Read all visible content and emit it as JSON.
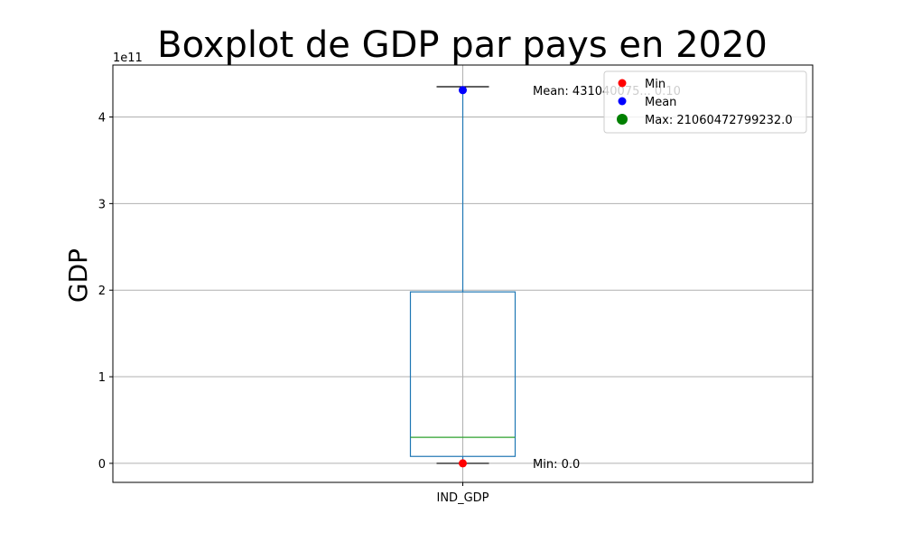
{
  "chart_data": {
    "type": "box",
    "title": "Boxplot de GDP par pays en 2020",
    "ylabel": "GDP",
    "offset_label": "1e11",
    "categories": [
      "IND_GDP"
    ],
    "ylim": [
      -22000000000.0,
      460000000000.0
    ],
    "yticks": [
      0,
      100000000000.0,
      200000000000.0,
      300000000000.0,
      400000000000.0
    ],
    "ytick_labels": [
      "0",
      "1",
      "2",
      "3",
      "4"
    ],
    "grid": true,
    "legend_placement": "upper right",
    "box": {
      "whisker_low": 0,
      "q1": 8000000000.0,
      "median": 30000000000.0,
      "q3": 198000000000.0,
      "whisker_high": 435000000000.0
    },
    "points": {
      "min": {
        "x": "IND_GDP",
        "y": 0,
        "label": "Min: 0.0",
        "color": "#ff0000"
      },
      "mean": {
        "x": "IND_GDP",
        "y": 431000000000.0,
        "label": "Mean: 431040075... 0.10",
        "color": "#0000ff"
      }
    },
    "legend": [
      {
        "label": "Min",
        "color": "#ff0000",
        "size": "small"
      },
      {
        "label": "Mean",
        "color": "#0000ff",
        "size": "small"
      },
      {
        "label": "Max: 21060472799232.0",
        "color": "#008000",
        "size": "large"
      }
    ],
    "colors": {
      "box": "#1f77b4",
      "median": "#2ca02c",
      "whisker_cap": "#000000",
      "grid": "#b0b0b0"
    }
  }
}
